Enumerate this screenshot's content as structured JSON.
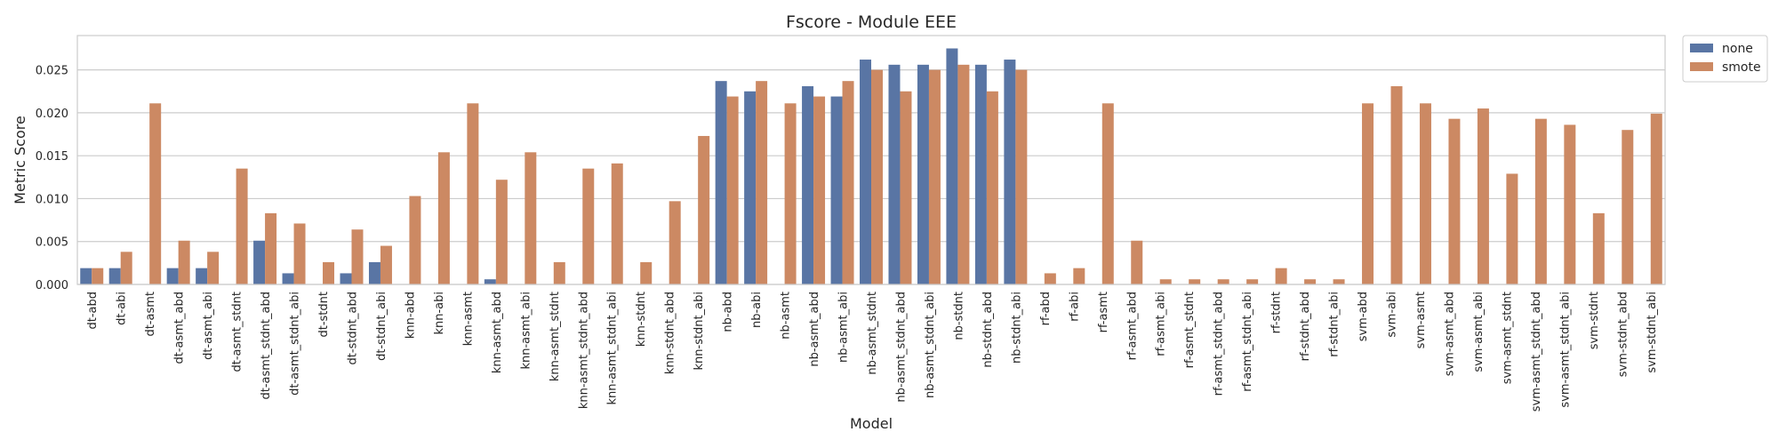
{
  "chart_data": {
    "type": "bar",
    "title": "Fscore - Module EEE",
    "xlabel": "Model",
    "ylabel": "Metric Score",
    "ylim": [
      0,
      0.029
    ],
    "yticks": [
      0.0,
      0.005,
      0.01,
      0.015,
      0.02,
      0.025
    ],
    "ytick_labels": [
      "0.000",
      "0.005",
      "0.010",
      "0.015",
      "0.020",
      "0.025"
    ],
    "grid": true,
    "legend": {
      "placement": "outside-top-right"
    },
    "categories": [
      "dt-abd",
      "dt-abi",
      "dt-asmt",
      "dt-asmt_abd",
      "dt-asmt_abi",
      "dt-asmt_stdnt",
      "dt-asmt_stdnt_abd",
      "dt-asmt_stdnt_abi",
      "dt-stdnt",
      "dt-stdnt_abd",
      "dt-stdnt_abi",
      "knn-abd",
      "knn-abi",
      "knn-asmt",
      "knn-asmt_abd",
      "knn-asmt_abi",
      "knn-asmt_stdnt",
      "knn-asmt_stdnt_abd",
      "knn-asmt_stdnt_abi",
      "knn-stdnt",
      "knn-stdnt_abd",
      "knn-stdnt_abi",
      "nb-abd",
      "nb-abi",
      "nb-asmt",
      "nb-asmt_abd",
      "nb-asmt_abi",
      "nb-asmt_stdnt",
      "nb-asmt_stdnt_abd",
      "nb-asmt_stdnt_abi",
      "nb-stdnt",
      "nb-stdnt_abd",
      "nb-stdnt_abi",
      "rf-abd",
      "rf-abi",
      "rf-asmt",
      "rf-asmt_abd",
      "rf-asmt_abi",
      "rf-asmt_stdnt",
      "rf-asmt_stdnt_abd",
      "rf-asmt_stdnt_abi",
      "rf-stdnt",
      "rf-stdnt_abd",
      "rf-stdnt_abi",
      "svm-abd",
      "svm-abi",
      "svm-asmt",
      "svm-asmt_abd",
      "svm-asmt_abi",
      "svm-asmt_stdnt",
      "svm-asmt_stdnt_abd",
      "svm-asmt_stdnt_abi",
      "svm-stdnt",
      "svm-stdnt_abd",
      "svm-stdnt_abi"
    ],
    "series": [
      {
        "name": "none",
        "color": "#5975a4",
        "values": [
          0.0019,
          0.0019,
          0,
          0.0019,
          0.0019,
          0,
          0.0051,
          0.0013,
          0,
          0.0013,
          0.0026,
          0,
          0,
          0,
          0.0006,
          0,
          0,
          0,
          0,
          0,
          0,
          0,
          0.0237,
          0.0225,
          0,
          0.0231,
          0.0219,
          0.0262,
          0.0256,
          0.0256,
          0.0275,
          0.0256,
          0.0262,
          0,
          0,
          0,
          0,
          0,
          0,
          0,
          0,
          0,
          0,
          0,
          0,
          0,
          0,
          0,
          0,
          0,
          0,
          0,
          0,
          0,
          0
        ]
      },
      {
        "name": "smote",
        "color": "#cc8963",
        "values": [
          0.0019,
          0.0038,
          0.0211,
          0.0051,
          0.0038,
          0.0135,
          0.0083,
          0.0071,
          0.0026,
          0.0064,
          0.0045,
          0.0103,
          0.0154,
          0.0211,
          0.0122,
          0.0154,
          0.0026,
          0.0135,
          0.0141,
          0.0026,
          0.0097,
          0.0173,
          0.0219,
          0.0237,
          0.0211,
          0.0219,
          0.0237,
          0.025,
          0.0225,
          0.025,
          0.0256,
          0.0225,
          0.025,
          0.0013,
          0.0019,
          0.0211,
          0.0051,
          0.0006,
          0.0006,
          0.0006,
          0.0006,
          0.0019,
          0.0006,
          0.0006,
          0.0211,
          0.0231,
          0.0211,
          0.0193,
          0.0205,
          0.0129,
          0.0193,
          0.0186,
          0.0083,
          0.018,
          0.0199
        ]
      }
    ]
  }
}
